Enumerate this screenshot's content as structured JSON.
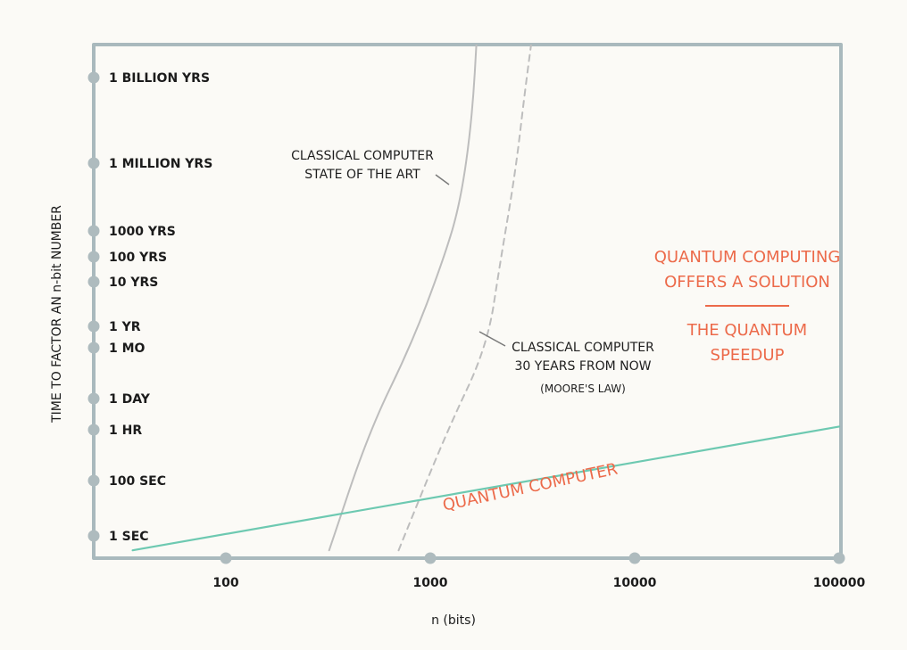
{
  "chart_data": {
    "type": "line",
    "xlabel": "n (bits)",
    "ylabel": "TIME TO FACTOR AN n-bit NUMBER",
    "x_scale": "log",
    "x_ticks": [
      {
        "value": 100,
        "label": "100"
      },
      {
        "value": 1000,
        "label": "1000"
      },
      {
        "value": 10000,
        "label": "10000"
      },
      {
        "value": 100000,
        "label": "100000"
      }
    ],
    "y_ticks": [
      {
        "seconds": 1,
        "label": "1 SEC"
      },
      {
        "seconds": 100,
        "label": "100 SEC"
      },
      {
        "seconds": 3600,
        "label": "1 HR"
      },
      {
        "seconds": 86400,
        "label": "1 DAY"
      },
      {
        "seconds": 2592000,
        "label": "1 MO"
      },
      {
        "seconds": 31536000,
        "label": "1 YR"
      },
      {
        "seconds": 315360000,
        "label": "10 YRS"
      },
      {
        "seconds": 3153600000,
        "label": "100 YRS"
      },
      {
        "seconds": 31536000000,
        "label": "1000 YRS"
      },
      {
        "seconds": 31536000000000,
        "label": "1 MILLION YRS"
      },
      {
        "seconds": 31536000000000000,
        "label": "1 BILLION YRS"
      }
    ],
    "series": [
      {
        "id": "classical-now",
        "style": "solid",
        "color": "#bdbdbd",
        "points": [
          [
            320,
            0.3
          ],
          [
            500,
            3000
          ],
          [
            800,
            3000000.0
          ],
          [
            1150,
            2000000000.0
          ],
          [
            1400,
            500000000000.0
          ],
          [
            1600,
            1000000000000000.0
          ],
          [
            1700,
            2e+18
          ]
        ]
      },
      {
        "id": "classical-future",
        "style": "dashed",
        "color": "#bdbdbd",
        "points": [
          [
            700,
            0.3
          ],
          [
            1200,
            3000
          ],
          [
            1900,
            3000000.0
          ],
          [
            2200,
            2000000000.0
          ],
          [
            2600,
            10000000000000.0
          ],
          [
            2900,
            1e+16
          ],
          [
            3200,
            2e+18
          ]
        ]
      },
      {
        "id": "quantum",
        "style": "solid",
        "color": "#6dc9b1",
        "points": [
          [
            35,
            0.3
          ],
          [
            100000,
            5000
          ]
        ]
      }
    ],
    "annotations": {
      "classical_now": [
        "CLASSICAL COMPUTER",
        "STATE OF THE ART"
      ],
      "classical_future": [
        "CLASSICAL COMPUTER",
        "30 YEARS FROM NOW",
        "(MOORE'S LAW)"
      ],
      "quantum": "QUANTUM COMPUTER",
      "solution": [
        "QUANTUM COMPUTING",
        "OFFERS A SOLUTION"
      ],
      "speedup": [
        "THE QUANTUM",
        "SPEEDUP"
      ]
    },
    "colors": {
      "frame": "#a9b9bd",
      "tick_dot": "#aebbbe",
      "classical": "#bdbdbd",
      "quantum": "#6dc9b1",
      "accent": "#ec6a4a"
    }
  }
}
